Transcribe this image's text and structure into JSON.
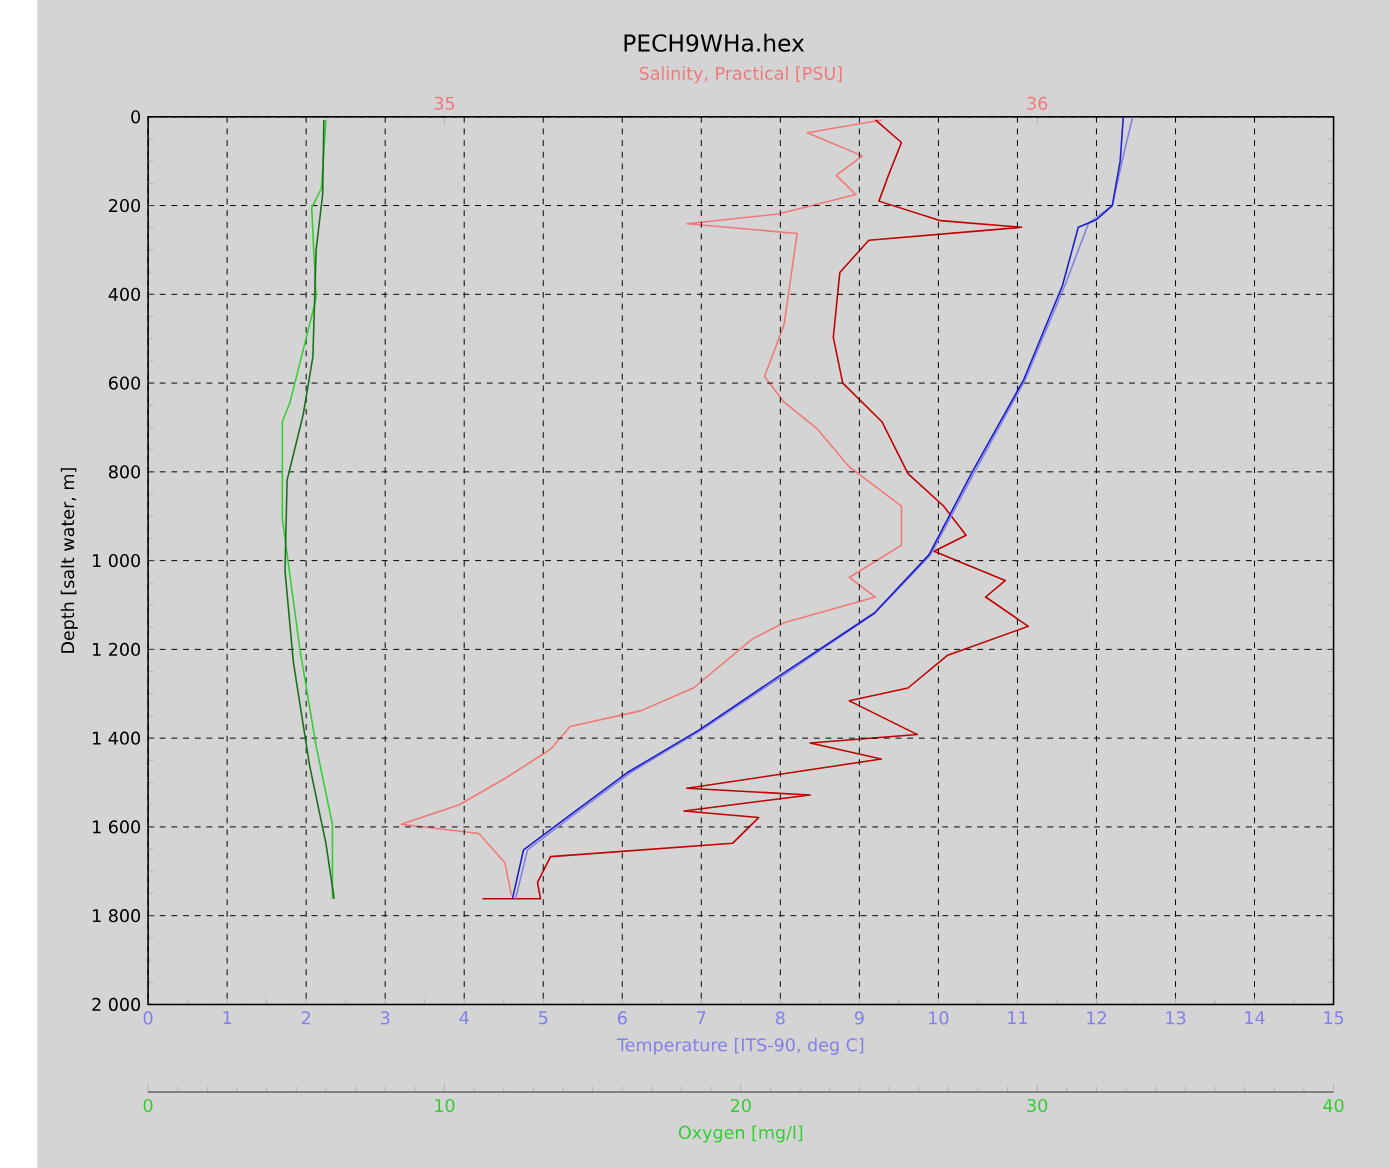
{
  "chart_data": [
    {
      "type": "line",
      "title": "PECH9WHa.hex",
      "xlabel": "Temperature [ITS-90, deg C]",
      "x2label": "Salinity, Practical [PSU]",
      "ylabel": "Depth [salt water, m]",
      "xlim": [
        0,
        15
      ],
      "xticks": [
        0,
        1,
        2,
        3,
        4,
        5,
        6,
        7,
        8,
        9,
        10,
        11,
        12,
        13,
        14,
        15
      ],
      "x2lim": [
        34.5,
        36.5
      ],
      "x2ticks": [
        35,
        36
      ],
      "ylim": [
        2000,
        0
      ],
      "yticks": [
        0,
        200,
        400,
        600,
        800,
        {
          "value": 1000,
          "label": "1 000"
        },
        {
          "value": 1200,
          "label": "1 200"
        },
        {
          "value": 1400,
          "label": "1 400"
        },
        {
          "value": 1600,
          "label": "1 600"
        },
        {
          "value": 1800,
          "label": "1 800"
        },
        {
          "value": 2000,
          "label": "2 000"
        }
      ],
      "grid": true,
      "series": [
        {
          "color": "#8080e8",
          "x": [
            12.46,
            12.35,
            12.2,
            11.9,
            11.6,
            11.1,
            10.45,
            9.9,
            9.2,
            8.0,
            7.0,
            6.1,
            5.45,
            4.8,
            4.65
          ],
          "values": [
            0,
            80,
            200,
            240,
            380,
            592,
            803,
            987,
            1118,
            1263,
            1382,
            1478,
            1564,
            1652,
            1762
          ]
        },
        {
          "color": "#1c1cc8",
          "x": [
            12.34,
            12.3,
            12.2,
            12.0,
            11.77,
            11.57,
            11.08,
            10.42,
            9.88,
            9.19,
            7.96,
            6.97,
            6.06,
            5.41,
            4.75,
            4.61
          ],
          "values": [
            0,
            100,
            200,
            232,
            249,
            380,
            592,
            803,
            987,
            1118,
            1263,
            1382,
            1478,
            1564,
            1652,
            1762
          ]
        },
        {
          "axis": "x2",
          "color": "#f07878",
          "x": [
            35.738,
            35.612,
            35.705,
            35.661,
            35.694,
            35.563,
            35.409,
            35.595,
            35.573,
            35.54,
            35.573,
            35.628,
            35.683,
            35.771,
            35.771,
            35.683,
            35.727,
            35.573,
            35.519,
            35.42,
            35.332,
            35.212,
            35.179,
            35.102,
            35.025,
            34.927,
            35.058,
            35.102,
            35.113
          ],
          "values": [
            7,
            36,
            88,
            132,
            175,
            219,
            241,
            263,
            468,
            585,
            643,
            702,
            789,
            877,
            965,
            1038,
            1082,
            1140,
            1177,
            1287,
            1338,
            1374,
            1425,
            1491,
            1550,
            1594,
            1615,
            1681,
            1754
          ]
        },
        {
          "axis": "x2",
          "color": "#c00000",
          "x": [
            35.727,
            35.771,
            35.749,
            35.733,
            35.837,
            35.974,
            35.716,
            35.667,
            35.656,
            35.672,
            35.738,
            35.782,
            35.842,
            35.88,
            35.826,
            35.946,
            35.913,
            35.985,
            35.848,
            35.782,
            35.683,
            35.798,
            35.617,
            35.737,
            35.409,
            35.617,
            35.404,
            35.53,
            35.486,
            35.179,
            35.157,
            35.162,
            35.064
          ],
          "values": [
            7,
            58,
            132,
            190,
            234,
            249,
            278,
            351,
            497,
            600,
            687,
            804,
            877,
            943,
            979,
            1045,
            1082,
            1148,
            1214,
            1287,
            1316,
            1392,
            1411,
            1447,
            1513,
            1528,
            1564,
            1579,
            1637,
            1667,
            1725,
            1762,
            1762
          ]
        }
      ]
    },
    {
      "type": "line",
      "xlabel": "Oxygen [mg/l]",
      "xlim": [
        0,
        40
      ],
      "xticks": [
        0,
        10,
        20,
        30,
        40
      ],
      "ylim": [
        2000,
        0
      ],
      "tick_labels": "x",
      "series": [
        {
          "color": "#33cc33",
          "x": [
            6.0,
            5.85,
            5.52,
            5.67,
            4.79,
            4.53,
            4.53,
            5.12,
            5.67,
            6.22,
            6.22
          ],
          "values": [
            7,
            161,
            205,
            409,
            643,
            687,
            906,
            1199,
            1418,
            1594,
            1762
          ]
        },
        {
          "color": "#1a6e1a",
          "x": [
            5.93,
            5.89,
            5.67,
            5.56,
            5.23,
            4.69,
            4.62,
            4.9,
            5.45,
            6.0,
            6.28
          ],
          "values": [
            7,
            175,
            300,
            541,
            672,
            819,
            1023,
            1228,
            1462,
            1637,
            1762
          ]
        }
      ]
    }
  ]
}
